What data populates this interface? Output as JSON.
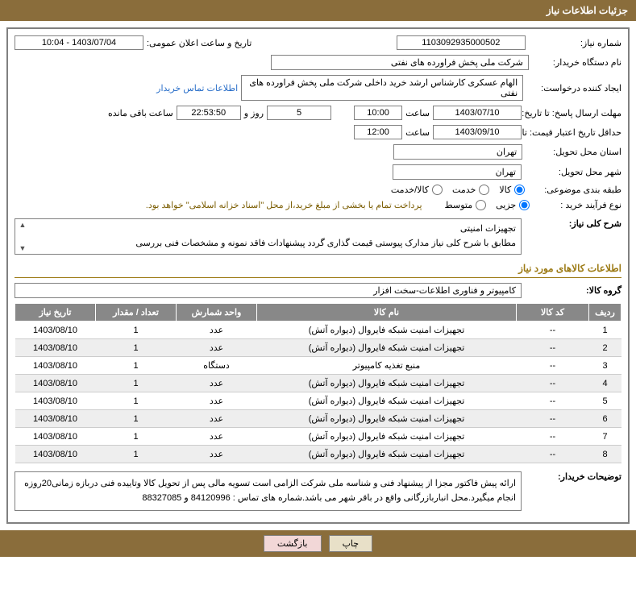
{
  "header": {
    "title": "جزئیات اطلاعات نیاز"
  },
  "fields": {
    "need_number_label": "شماره نیاز:",
    "need_number": "1103092935000502",
    "announce_label": "تاریخ و ساعت اعلان عمومی:",
    "announce_value": "1403/07/04 - 10:04",
    "buyer_org_label": "نام دستگاه خریدار:",
    "buyer_org": "شرکت ملی پخش فراورده های نفتی",
    "requester_label": "ایجاد کننده درخواست:",
    "requester": "الهام عسکری کارشناس ارشد خرید داخلی شرکت ملی پخش فراورده های نفتی",
    "contact_link": "اطلاعات تماس خریدار",
    "deadline_label": "مهلت ارسال پاسخ: تا تاریخ:",
    "deadline_date": "1403/07/10",
    "time_label": "ساعت",
    "deadline_time": "10:00",
    "days_value": "5",
    "days_label": "روز و",
    "remaining_time": "22:53:50",
    "remaining_label": "ساعت باقی مانده",
    "validity_label": "حداقل تاریخ اعتبار قیمت: تا تاریخ:",
    "validity_date": "1403/09/10",
    "validity_time": "12:00",
    "province_label": "استان محل تحویل:",
    "province": "تهران",
    "city_label": "شهر محل تحویل:",
    "city": "تهران",
    "category_label": "طبقه بندی موضوعی:",
    "radio1": "کالا",
    "radio2": "خدمت",
    "radio3": "کالا/خدمت",
    "process_label": "نوع فرآیند خرید :",
    "proc_radio1": "جزیی",
    "proc_radio2": "متوسط",
    "process_note": "پرداخت تمام یا بخشی از مبلغ خرید،از محل \"اسناد خزانه اسلامی\" خواهد بود.",
    "summary_label": "شرح کلی نیاز:",
    "summary_line1": "تجهیزات امنیتی",
    "summary_line2": "مطابق با شرح کلی نیاز مدارک پیوستی قیمت گذاری گردد پیشنهادات فاقد نمونه و مشخصات فنی بررسی",
    "goods_group_label": "گروه کالا:",
    "goods_group": "کامپیوتر و فناوری اطلاعات-سخت افزار",
    "buyer_notes_label": "توضیحات خریدار:",
    "buyer_notes": "ارائه پیش فاکتور مجزا از پیشنهاد فنی و شناسه ملی شرکت الزامی است تسویه مالی پس از تحویل کالا وتاییده فنی دربازه زمانی20روزه انجام میگیرد.محل انباربازرگانی واقع در باقر شهر می باشد.شماره های تماس : 84120996 و 88327085"
  },
  "sections": {
    "items_title": "اطلاعات کالاهای مورد نیاز"
  },
  "table": {
    "headers": {
      "row": "ردیف",
      "code": "کد کالا",
      "name": "نام کالا",
      "unit": "واحد شمارش",
      "qty": "تعداد / مقدار",
      "date": "تاریخ نیاز"
    },
    "rows": [
      {
        "n": "1",
        "code": "--",
        "name": "تجهیزات امنیت شبکه فایروال (دیواره آتش)",
        "unit": "عدد",
        "qty": "1",
        "date": "1403/08/10"
      },
      {
        "n": "2",
        "code": "--",
        "name": "تجهیزات امنیت شبکه فایروال (دیواره آتش)",
        "unit": "عدد",
        "qty": "1",
        "date": "1403/08/10"
      },
      {
        "n": "3",
        "code": "--",
        "name": "منبع تغذیه کامپیوتر",
        "unit": "دستگاه",
        "qty": "1",
        "date": "1403/08/10"
      },
      {
        "n": "4",
        "code": "--",
        "name": "تجهیزات امنیت شبکه فایروال (دیواره آتش)",
        "unit": "عدد",
        "qty": "1",
        "date": "1403/08/10"
      },
      {
        "n": "5",
        "code": "--",
        "name": "تجهیزات امنیت شبکه فایروال (دیواره آتش)",
        "unit": "عدد",
        "qty": "1",
        "date": "1403/08/10"
      },
      {
        "n": "6",
        "code": "--",
        "name": "تجهیزات امنیت شبکه فایروال (دیواره آتش)",
        "unit": "عدد",
        "qty": "1",
        "date": "1403/08/10"
      },
      {
        "n": "7",
        "code": "--",
        "name": "تجهیزات امنیت شبکه فایروال (دیواره آتش)",
        "unit": "عدد",
        "qty": "1",
        "date": "1403/08/10"
      },
      {
        "n": "8",
        "code": "--",
        "name": "تجهیزات امنیت شبکه فایروال (دیواره آتش)",
        "unit": "عدد",
        "qty": "1",
        "date": "1403/08/10"
      }
    ]
  },
  "buttons": {
    "print": "چاپ",
    "back": "بازگشت"
  }
}
